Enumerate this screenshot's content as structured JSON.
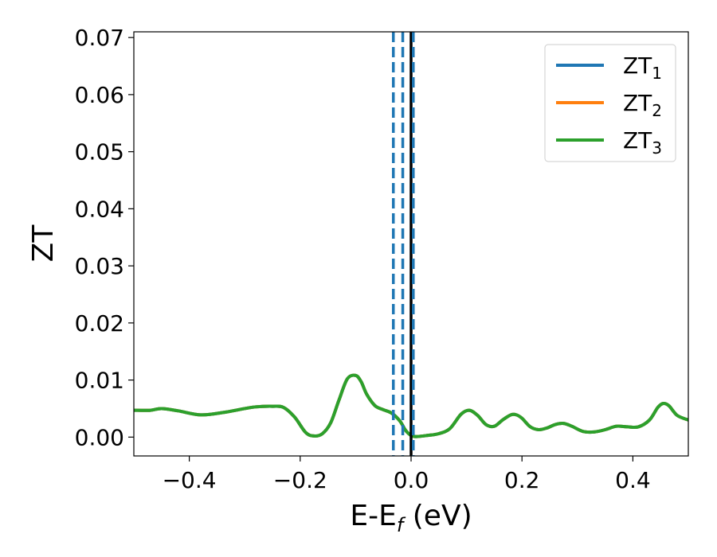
{
  "chart_data": {
    "type": "line",
    "xlabel": "E-E",
    "xlabel_sub": "f",
    "xlabel_unit": " (eV)",
    "ylabel": "ZT",
    "xlim": [
      -0.5,
      0.5
    ],
    "ylim": [
      -0.0033,
      0.071
    ],
    "xticks": [
      -0.4,
      -0.2,
      0.0,
      0.2,
      0.4
    ],
    "xtick_labels": [
      "−0.4",
      "−0.2",
      "0.0",
      "0.2",
      "0.4"
    ],
    "yticks": [
      0.0,
      0.01,
      0.02,
      0.03,
      0.04,
      0.05,
      0.06,
      0.07
    ],
    "ytick_labels": [
      "0.00",
      "0.01",
      "0.02",
      "0.03",
      "0.04",
      "0.05",
      "0.06",
      "0.07"
    ],
    "grid": false,
    "legend_position": "top-right",
    "series": [
      {
        "name": "ZT",
        "name_sub": "1",
        "color": "#1f77b4",
        "x": [
          -0.5,
          -0.47,
          -0.45,
          -0.42,
          -0.38,
          -0.34,
          -0.3,
          -0.28,
          -0.25,
          -0.23,
          -0.21,
          -0.19,
          -0.175,
          -0.16,
          -0.145,
          -0.13,
          -0.115,
          -0.1,
          -0.09,
          -0.08,
          -0.065,
          -0.05,
          -0.035,
          -0.02,
          -0.01,
          0.0,
          0.01,
          0.03,
          0.05,
          0.07,
          0.09,
          0.105,
          0.12,
          0.135,
          0.15,
          0.165,
          0.18,
          0.19,
          0.2,
          0.215,
          0.23,
          0.245,
          0.26,
          0.275,
          0.29,
          0.31,
          0.33,
          0.35,
          0.37,
          0.39,
          0.41,
          0.43,
          0.445,
          0.455,
          0.465,
          0.48,
          0.5
        ],
        "y": [
          0.0047,
          0.0047,
          0.005,
          0.0046,
          0.0039,
          0.0043,
          0.005,
          0.0053,
          0.0054,
          0.0052,
          0.0035,
          0.0008,
          0.0002,
          0.0006,
          0.0025,
          0.0065,
          0.0102,
          0.0108,
          0.0097,
          0.0075,
          0.0055,
          0.0048,
          0.0042,
          0.0028,
          0.0012,
          0.0003,
          0.0001,
          0.0003,
          0.0006,
          0.0015,
          0.004,
          0.0047,
          0.0038,
          0.0022,
          0.0019,
          0.003,
          0.0039,
          0.0039,
          0.0033,
          0.0018,
          0.0013,
          0.0016,
          0.0022,
          0.0024,
          0.0019,
          0.001,
          0.0009,
          0.0013,
          0.0019,
          0.0018,
          0.0018,
          0.003,
          0.0052,
          0.0059,
          0.0055,
          0.0038,
          0.003
        ]
      },
      {
        "name": "ZT",
        "name_sub": "2",
        "color": "#ff7f0e",
        "x": [
          -0.5,
          -0.47,
          -0.45,
          -0.42,
          -0.38,
          -0.34,
          -0.3,
          -0.28,
          -0.25,
          -0.23,
          -0.21,
          -0.19,
          -0.175,
          -0.16,
          -0.145,
          -0.13,
          -0.115,
          -0.1,
          -0.09,
          -0.08,
          -0.065,
          -0.05,
          -0.035,
          -0.02,
          -0.01,
          0.0,
          0.01,
          0.03,
          0.05,
          0.07,
          0.09,
          0.105,
          0.12,
          0.135,
          0.15,
          0.165,
          0.18,
          0.19,
          0.2,
          0.215,
          0.23,
          0.245,
          0.26,
          0.275,
          0.29,
          0.31,
          0.33,
          0.35,
          0.37,
          0.39,
          0.41,
          0.43,
          0.445,
          0.455,
          0.465,
          0.48,
          0.5
        ],
        "y": [
          0.0047,
          0.0047,
          0.005,
          0.0046,
          0.0039,
          0.0043,
          0.005,
          0.0053,
          0.0054,
          0.0052,
          0.0035,
          0.0008,
          0.0002,
          0.0006,
          0.0025,
          0.0065,
          0.0102,
          0.0108,
          0.0097,
          0.0075,
          0.0055,
          0.0048,
          0.0042,
          0.0028,
          0.0012,
          0.0003,
          0.0001,
          0.0003,
          0.0006,
          0.0015,
          0.004,
          0.0047,
          0.0038,
          0.0022,
          0.0019,
          0.003,
          0.0039,
          0.0039,
          0.0033,
          0.0018,
          0.0013,
          0.0016,
          0.0022,
          0.0024,
          0.0019,
          0.001,
          0.0009,
          0.0013,
          0.0019,
          0.0018,
          0.0018,
          0.003,
          0.0052,
          0.0059,
          0.0055,
          0.0038,
          0.003
        ]
      },
      {
        "name": "ZT",
        "name_sub": "3",
        "color": "#2ca02c",
        "x": [
          -0.5,
          -0.47,
          -0.45,
          -0.42,
          -0.38,
          -0.34,
          -0.3,
          -0.28,
          -0.25,
          -0.23,
          -0.21,
          -0.19,
          -0.175,
          -0.16,
          -0.145,
          -0.13,
          -0.115,
          -0.1,
          -0.09,
          -0.08,
          -0.065,
          -0.05,
          -0.035,
          -0.02,
          -0.01,
          0.0,
          0.01,
          0.03,
          0.05,
          0.07,
          0.09,
          0.105,
          0.12,
          0.135,
          0.15,
          0.165,
          0.18,
          0.19,
          0.2,
          0.215,
          0.23,
          0.245,
          0.26,
          0.275,
          0.29,
          0.31,
          0.33,
          0.35,
          0.37,
          0.39,
          0.41,
          0.43,
          0.445,
          0.455,
          0.465,
          0.48,
          0.5
        ],
        "y": [
          0.0047,
          0.0047,
          0.005,
          0.0046,
          0.0039,
          0.0043,
          0.005,
          0.0053,
          0.0054,
          0.0052,
          0.0035,
          0.0008,
          0.0002,
          0.0006,
          0.0025,
          0.0065,
          0.0102,
          0.0108,
          0.0097,
          0.0075,
          0.0055,
          0.0048,
          0.0042,
          0.0028,
          0.0012,
          0.0003,
          0.0001,
          0.0003,
          0.0006,
          0.0015,
          0.004,
          0.0047,
          0.0038,
          0.0022,
          0.0019,
          0.003,
          0.0039,
          0.0039,
          0.0033,
          0.0018,
          0.0013,
          0.0016,
          0.0022,
          0.0024,
          0.0019,
          0.001,
          0.0009,
          0.0013,
          0.0019,
          0.0018,
          0.0018,
          0.003,
          0.0052,
          0.0059,
          0.0055,
          0.0038,
          0.003
        ]
      }
    ],
    "vertical_lines": [
      {
        "x": -0.032,
        "color": "#1f77b4",
        "style": "dashed"
      },
      {
        "x": -0.015,
        "color": "#1f77b4",
        "style": "dashed"
      },
      {
        "x": 0.0,
        "color": "#000000",
        "style": "solid"
      },
      {
        "x": 0.004,
        "color": "#1f77b4",
        "style": "dashed"
      }
    ]
  }
}
